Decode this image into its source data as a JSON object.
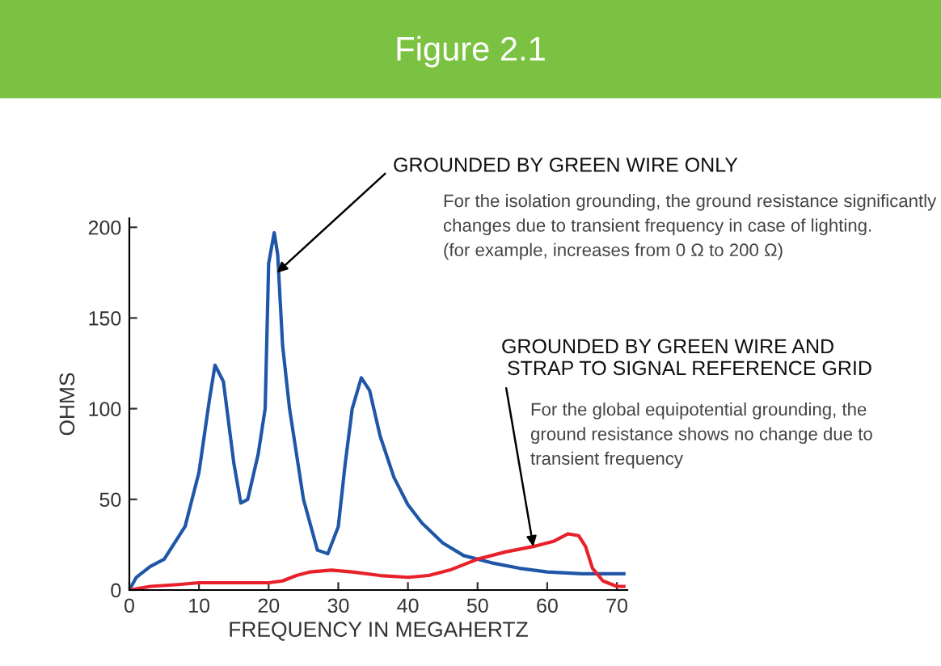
{
  "chart_data": {
    "type": "line",
    "title": "Figure 2.1",
    "xlabel": "FREQUENCY IN MEGAHERTZ",
    "ylabel": "OHMS",
    "xlim": [
      0,
      71.5
    ],
    "ylim": [
      0,
      205
    ],
    "xticks": [
      0,
      10,
      20,
      30,
      40,
      50,
      60,
      70
    ],
    "yticks": [
      0,
      50,
      100,
      150,
      200
    ],
    "grid": false,
    "legend": false,
    "marker": "none",
    "line_style": "solid",
    "series": [
      {
        "color": "#1f56a8",
        "x": [
          0,
          1,
          3,
          5,
          8,
          10,
          11.5,
          12.3,
          13.5,
          15,
          16,
          17,
          18.5,
          19.5,
          20,
          20.8,
          21.3,
          22,
          23,
          25,
          27,
          28.5,
          30,
          31,
          32,
          33.3,
          34.5,
          36,
          38,
          40,
          42,
          45,
          48,
          52,
          56,
          60,
          65,
          71
        ],
        "values": [
          0,
          7,
          13,
          17,
          35,
          65,
          105,
          124,
          115,
          70,
          48,
          50,
          75,
          100,
          180,
          197,
          185,
          135,
          100,
          50,
          22,
          20,
          35,
          70,
          100,
          117,
          110,
          85,
          62,
          47,
          37,
          26,
          19,
          15,
          12,
          10,
          9,
          9
        ]
      },
      {
        "color": "#e8202a",
        "x": [
          0,
          3,
          7,
          10,
          15,
          20,
          22,
          24,
          26,
          29,
          32,
          36,
          40,
          43,
          46,
          50,
          54,
          58,
          61,
          63,
          64.5,
          65.5,
          66.5,
          68,
          70,
          71
        ],
        "values": [
          0,
          2,
          3,
          4,
          4,
          4,
          5,
          8,
          10,
          11,
          10,
          8,
          7,
          8,
          11,
          17,
          21,
          24,
          27,
          31,
          30,
          24,
          12,
          5,
          2,
          2
        ]
      }
    ],
    "annotations": [
      {
        "text": "GROUNDED BY GREEN WIRE ONLY",
        "x": 21.2,
        "y": 175
      },
      "For the isolation grounding, the ground resistance significantly\nchanges due to transient frequency in case of lighting.\n(for example, increases from 0 Ω to 200 Ω)",
      {
        "text": "GROUNDED BY GREEN WIRE AND\n STRAP TO SIGNAL REFERENCE GRID",
        "x": 58,
        "y": 24
      },
      "For the global equipotential grounding, the\nground resistance shows no change due to\ntransient frequency"
    ]
  }
}
